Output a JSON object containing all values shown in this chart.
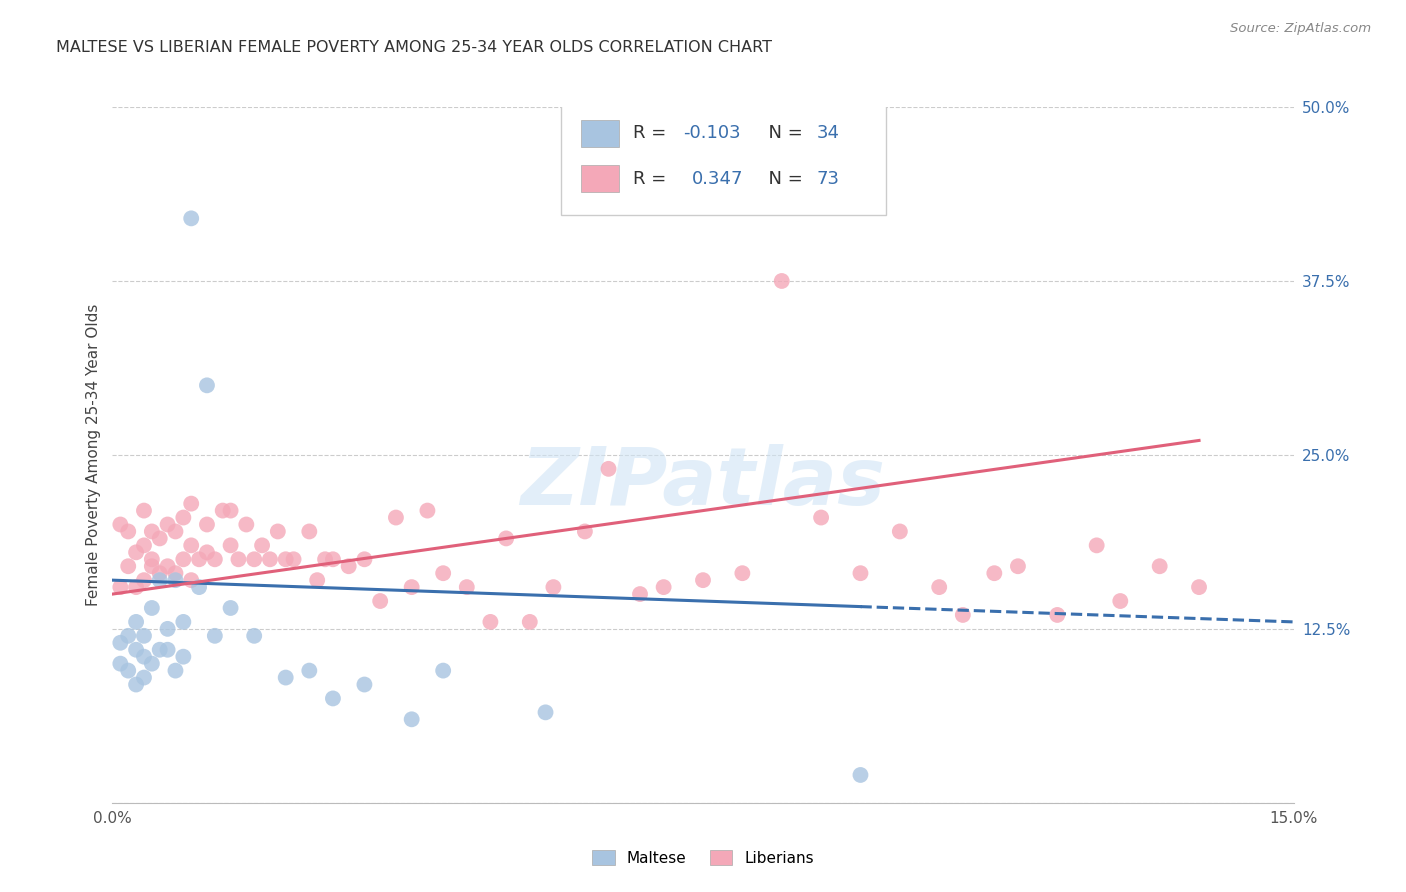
{
  "title": "MALTESE VS LIBERIAN FEMALE POVERTY AMONG 25-34 YEAR OLDS CORRELATION CHART",
  "source": "Source: ZipAtlas.com",
  "ylabel": "Female Poverty Among 25-34 Year Olds",
  "xlim": [
    0.0,
    0.15
  ],
  "ylim": [
    0.0,
    0.5
  ],
  "ytick_positions": [
    0.0,
    0.125,
    0.25,
    0.375,
    0.5
  ],
  "ytick_labels_right": [
    "",
    "12.5%",
    "25.0%",
    "37.5%",
    "50.0%"
  ],
  "maltese_R": -0.103,
  "maltese_N": 34,
  "liberian_R": 0.347,
  "liberian_N": 73,
  "maltese_color": "#a8c4e0",
  "liberian_color": "#f4a8b8",
  "maltese_line_color": "#3a6fad",
  "liberian_line_color": "#e0607a",
  "background_color": "#ffffff",
  "grid_color": "#cccccc",
  "watermark": "ZIPatlas",
  "legend_maltese_label": "Maltese",
  "legend_liberian_label": "Liberians",
  "maltese_x": [
    0.001,
    0.001,
    0.002,
    0.002,
    0.003,
    0.003,
    0.003,
    0.004,
    0.004,
    0.004,
    0.005,
    0.005,
    0.006,
    0.006,
    0.007,
    0.007,
    0.008,
    0.008,
    0.009,
    0.009,
    0.01,
    0.011,
    0.012,
    0.013,
    0.015,
    0.018,
    0.022,
    0.025,
    0.028,
    0.032,
    0.038,
    0.042,
    0.055,
    0.095
  ],
  "maltese_y": [
    0.1,
    0.115,
    0.095,
    0.12,
    0.085,
    0.11,
    0.13,
    0.09,
    0.105,
    0.12,
    0.1,
    0.14,
    0.11,
    0.16,
    0.11,
    0.125,
    0.095,
    0.16,
    0.105,
    0.13,
    0.42,
    0.155,
    0.3,
    0.12,
    0.14,
    0.12,
    0.09,
    0.095,
    0.075,
    0.085,
    0.06,
    0.095,
    0.065,
    0.02
  ],
  "liberian_x": [
    0.001,
    0.001,
    0.002,
    0.002,
    0.003,
    0.003,
    0.004,
    0.004,
    0.004,
    0.005,
    0.005,
    0.005,
    0.006,
    0.006,
    0.007,
    0.007,
    0.008,
    0.008,
    0.009,
    0.009,
    0.01,
    0.01,
    0.01,
    0.011,
    0.012,
    0.012,
    0.013,
    0.014,
    0.015,
    0.015,
    0.016,
    0.017,
    0.018,
    0.019,
    0.02,
    0.021,
    0.022,
    0.023,
    0.025,
    0.026,
    0.027,
    0.028,
    0.03,
    0.032,
    0.034,
    0.036,
    0.038,
    0.04,
    0.042,
    0.045,
    0.048,
    0.05,
    0.053,
    0.056,
    0.06,
    0.063,
    0.067,
    0.07,
    0.075,
    0.08,
    0.085,
    0.09,
    0.095,
    0.1,
    0.105,
    0.108,
    0.112,
    0.115,
    0.12,
    0.125,
    0.128,
    0.133,
    0.138
  ],
  "liberian_y": [
    0.155,
    0.2,
    0.17,
    0.195,
    0.155,
    0.18,
    0.16,
    0.185,
    0.21,
    0.17,
    0.195,
    0.175,
    0.165,
    0.19,
    0.17,
    0.2,
    0.165,
    0.195,
    0.175,
    0.205,
    0.16,
    0.185,
    0.215,
    0.175,
    0.2,
    0.18,
    0.175,
    0.21,
    0.185,
    0.21,
    0.175,
    0.2,
    0.175,
    0.185,
    0.175,
    0.195,
    0.175,
    0.175,
    0.195,
    0.16,
    0.175,
    0.175,
    0.17,
    0.175,
    0.145,
    0.205,
    0.155,
    0.21,
    0.165,
    0.155,
    0.13,
    0.19,
    0.13,
    0.155,
    0.195,
    0.24,
    0.15,
    0.155,
    0.16,
    0.165,
    0.375,
    0.205,
    0.165,
    0.195,
    0.155,
    0.135,
    0.165,
    0.17,
    0.135,
    0.185,
    0.145,
    0.17,
    0.155
  ]
}
